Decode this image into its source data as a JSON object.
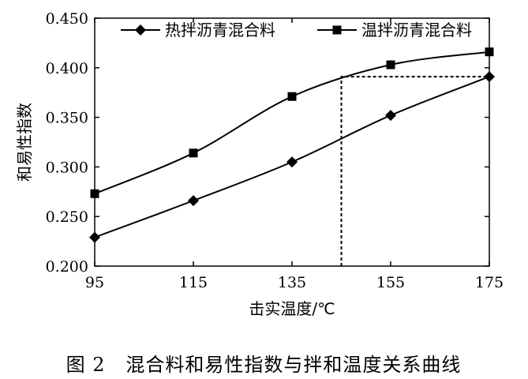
{
  "chart_data": {
    "type": "line",
    "caption": "图 2   混合料和易性指数与拌和温度关系曲线",
    "xlabel": "击实温度/℃",
    "ylabel": "和易性指数",
    "xlim": [
      95,
      175
    ],
    "ylim": [
      0.2,
      0.45
    ],
    "x": [
      95,
      115,
      135,
      155,
      175
    ],
    "xticks": [
      "95",
      "115",
      "135",
      "155",
      "175"
    ],
    "yticks": [
      "0.200",
      "0.250",
      "0.300",
      "0.350",
      "0.400",
      "0.450"
    ],
    "legend_position": "top-right",
    "grid": false,
    "series": [
      {
        "name": "热拌沥青混合料",
        "marker": "diamond",
        "color": "#000000",
        "values": [
          0.229,
          0.266,
          0.305,
          0.352,
          0.391
        ]
      },
      {
        "name": "温拌沥青混合料",
        "marker": "square",
        "color": "#000000",
        "values": [
          0.273,
          0.314,
          0.371,
          0.403,
          0.416
        ]
      }
    ],
    "annotation": {
      "type": "dashed-guide",
      "x": 145,
      "y": 0.391
    }
  }
}
